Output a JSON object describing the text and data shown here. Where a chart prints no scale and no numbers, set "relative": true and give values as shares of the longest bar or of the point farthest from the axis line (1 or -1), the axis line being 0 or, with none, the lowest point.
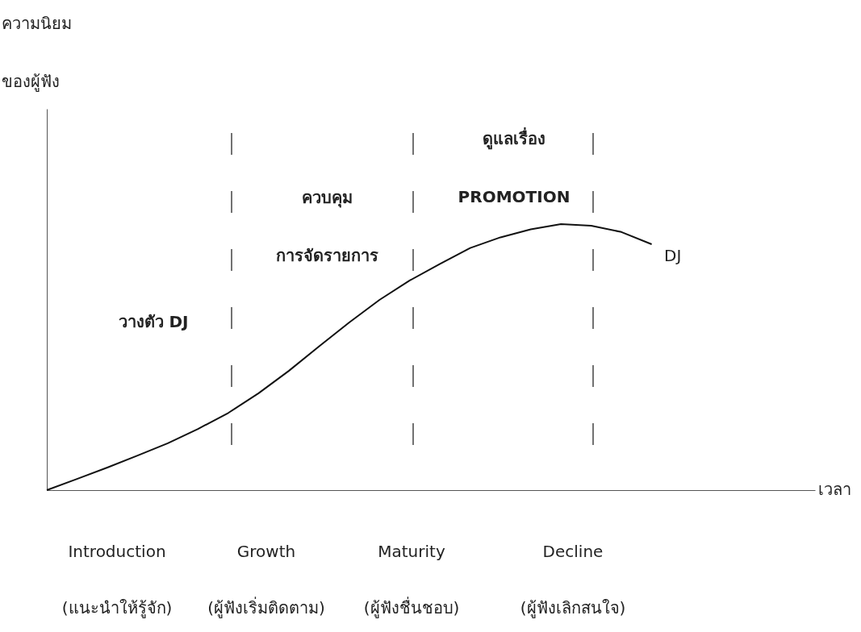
{
  "chart_data": {
    "type": "line",
    "relative": true,
    "ylabel": "ความนิยม\nของผู้ฟัง",
    "xlabel": "เวลา",
    "categories": [
      null,
      null,
      null,
      null,
      null,
      null,
      null,
      null,
      null,
      null,
      null,
      null,
      null,
      null,
      null,
      null,
      null,
      null,
      null,
      null,
      null,
      null,
      null,
      null,
      null,
      null
    ],
    "series": [
      {
        "color": "#111111",
        "values": [
          0,
          0.042,
          0.085,
          0.13,
          0.176,
          0.23,
          0.29,
          0.364,
          0.448,
          0.54,
          0.63,
          0.715,
          0.788,
          0.85,
          0.91,
          0.95,
          0.98,
          1.0,
          0.994,
          0.97,
          0.924,
          null,
          null,
          null,
          null,
          null
        ]
      }
    ],
    "annotations": [
      "วางตัว DJ",
      "ควบคุม\nการจัดรายการ",
      "ดูแลเรื่อง\nPROMOTION",
      "DJ",
      "Introduction\n(แนะนำให้รู้จัก)",
      "Growth\n(ผู้ฟังเริ่มติดตาม)",
      "Maturity\n(ผู้ฟังชื่นชอบ)",
      "Decline\n(ผู้ฟังเลิกสนใจ)"
    ]
  }
}
